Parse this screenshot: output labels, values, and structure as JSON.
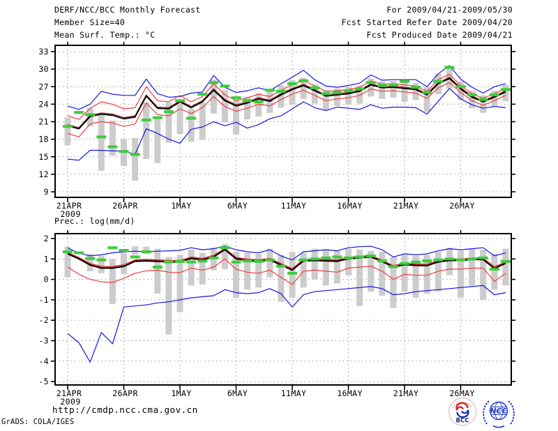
{
  "header": {
    "left_lines": [
      "DERF/NCC/BCC Monthly Forecast",
      "Member Size=40",
      "Mean Surf. Temp.: °C"
    ],
    "right_lines": [
      "For 2009/04/21-2009/05/30",
      "Fcst Started Refer Date 2009/04/20",
      "Fcst Produced Date 2009/04/21"
    ]
  },
  "footer": {
    "url": "http://cmdp.ncc.cma.gov.cn",
    "credit": "GrADS: COLA/IGES",
    "logos": [
      {
        "label": "BCC"
      },
      {
        "label": "NCC"
      }
    ]
  },
  "colors": {
    "extreme_line": "#1414e6",
    "sigma_line": "#f03c3c",
    "control_line": "#8c1c1c",
    "mean_line": "#000000",
    "obs_dash": "#3ccc3c",
    "spread_bar": "#cccccc"
  },
  "chart_data": [
    {
      "type": "line",
      "title": "Mean Surf. Temp.: °C",
      "x_start": "21APR2009",
      "x_tick_days": [
        0,
        5,
        10,
        15,
        20,
        25,
        30,
        35
      ],
      "x_tick_labels": [
        "21APR",
        "26APR",
        "1MAY",
        "6MAY",
        "11MAY",
        "16MAY",
        "21MAY",
        "26MAY"
      ],
      "year_label": "2009",
      "ylim": [
        9,
        33
      ],
      "yticks": [
        33,
        30,
        27,
        24,
        21,
        18,
        15,
        12,
        9
      ],
      "y_tick_labels": [
        "33",
        "30",
        "27",
        "24",
        "21",
        "18",
        "15",
        "12",
        "9"
      ],
      "grid": true,
      "series": [
        {
          "name": "ensemble-min",
          "color": "#1414e6",
          "width": 1.2,
          "values": [
            14.6,
            14.4,
            16.1,
            16.1,
            16.0,
            16.0,
            15.4,
            19.8,
            19.0,
            18.0,
            17.3,
            19.7,
            20.1,
            21.0,
            20.3,
            20.9,
            19.9,
            20.5,
            21.5,
            22.0,
            23.2,
            24.4,
            23.4,
            22.9,
            23.5,
            23.3,
            23.1,
            23.9,
            23.3,
            23.5,
            23.5,
            23.4,
            22.3,
            24.5,
            26.7,
            24.9,
            23.9,
            23.3,
            23.6,
            23.4
          ]
        },
        {
          "name": "ensemble-max",
          "color": "#1414e6",
          "width": 1.2,
          "values": [
            23.7,
            23.1,
            24.0,
            26.2,
            25.7,
            25.5,
            25.5,
            28.3,
            25.8,
            25.2,
            25.3,
            25.9,
            26.1,
            28.9,
            26.9,
            26.0,
            26.3,
            26.8,
            26.3,
            27.5,
            28.6,
            29.8,
            28.2,
            27.1,
            26.9,
            27.2,
            27.6,
            29.0,
            28.1,
            28.2,
            28.2,
            28.2,
            27.0,
            29.2,
            30.6,
            28.3,
            26.9,
            25.9,
            27.0,
            27.5
          ]
        },
        {
          "name": "mean-minus-sd",
          "color": "#f03c3c",
          "width": 1.2,
          "values": [
            19.0,
            18.4,
            20.6,
            21.0,
            20.8,
            20.2,
            20.6,
            24.2,
            22.2,
            22.0,
            23.2,
            22.4,
            23.4,
            25.3,
            23.6,
            22.8,
            23.3,
            24.0,
            23.7,
            24.8,
            25.7,
            26.4,
            25.5,
            24.6,
            24.9,
            25.1,
            25.5,
            26.6,
            26.2,
            26.3,
            26.1,
            25.9,
            25.0,
            26.8,
            27.7,
            26.0,
            24.6,
            23.8,
            24.6,
            25.5
          ]
        },
        {
          "name": "mean-plus-sd",
          "color": "#f03c3c",
          "width": 1.2,
          "values": [
            22.0,
            21.4,
            23.3,
            24.4,
            24.0,
            23.2,
            23.4,
            27.0,
            24.6,
            24.4,
            25.5,
            24.4,
            25.3,
            27.5,
            25.6,
            24.6,
            25.1,
            25.7,
            25.3,
            26.4,
            27.3,
            28.1,
            27.1,
            26.2,
            26.3,
            26.5,
            26.9,
            28.0,
            27.4,
            27.5,
            27.3,
            27.1,
            26.2,
            28.2,
            29.1,
            27.2,
            25.8,
            25.0,
            25.8,
            26.7
          ]
        },
        {
          "name": "control-run",
          "color": "#8c1c1c",
          "width": 1.2,
          "values": [
            20.5,
            20.0,
            22.1,
            22.5,
            22.3,
            21.7,
            22.0,
            25.6,
            23.5,
            23.4,
            24.6,
            23.6,
            24.6,
            26.6,
            24.8,
            23.9,
            24.4,
            25.1,
            24.7,
            25.8,
            26.7,
            27.4,
            26.5,
            25.6,
            25.8,
            26.0,
            26.4,
            27.5,
            27.0,
            27.1,
            26.9,
            26.7,
            25.8,
            27.7,
            28.6,
            26.8,
            25.4,
            24.6,
            25.4,
            26.3
          ]
        },
        {
          "name": "ensemble-mean",
          "color": "#000000",
          "width": 1.8,
          "values": [
            20.3,
            19.8,
            21.9,
            22.3,
            22.1,
            21.5,
            21.8,
            25.4,
            23.3,
            23.2,
            24.4,
            23.4,
            24.4,
            26.4,
            24.6,
            23.7,
            24.2,
            24.9,
            24.5,
            25.6,
            26.5,
            27.2,
            26.3,
            25.4,
            25.6,
            25.8,
            26.2,
            27.3,
            26.8,
            26.9,
            26.7,
            26.5,
            25.6,
            27.5,
            28.4,
            26.6,
            25.2,
            24.4,
            25.2,
            26.1
          ]
        }
      ],
      "observation": {
        "name": "observation",
        "color": "#3ccc3c",
        "values": [
          20.2,
          22.6,
          22.2,
          18.4,
          16.7,
          15.9,
          15.4,
          21.3,
          21.7,
          22.7,
          24.6,
          21.6,
          25.7,
          27.7,
          27.1,
          25.1,
          24.6,
          24.4,
          26.4,
          26.2,
          27.5,
          28.0,
          26.8,
          25.8,
          26.0,
          26.3,
          26.6,
          27.7,
          27.2,
          27.3,
          27.9,
          26.9,
          26.0,
          27.9,
          30.3,
          27.0,
          25.6,
          24.8,
          25.6,
          26.5
        ]
      },
      "spread_bars": {
        "color": "#cccccc",
        "ranges": [
          [
            17.0,
            21.7
          ],
          null,
          [
            20.2,
            23.3
          ],
          [
            12.6,
            22.2
          ],
          [
            15.2,
            21.2
          ],
          [
            13.4,
            18.0
          ],
          [
            10.9,
            18.2
          ],
          [
            14.6,
            24.3
          ],
          [
            13.9,
            21.8
          ],
          [
            17.4,
            24.3
          ],
          [
            18.9,
            24.1
          ],
          [
            17.6,
            23.2
          ],
          [
            17.9,
            24.3
          ],
          [
            22.4,
            28.2
          ],
          [
            20.9,
            26.4
          ],
          [
            18.8,
            24.7
          ],
          [
            21.4,
            25.2
          ],
          [
            21.9,
            25.9
          ],
          [
            22.5,
            26.3
          ],
          [
            23.4,
            27.2
          ],
          [
            23.9,
            28.1
          ],
          [
            24.9,
            28.5
          ],
          [
            24.1,
            27.4
          ],
          [
            22.9,
            26.4
          ],
          [
            23.7,
            26.7
          ],
          [
            23.9,
            26.9
          ],
          [
            24.1,
            27.2
          ],
          [
            25.3,
            28.4
          ],
          [
            24.9,
            27.9
          ],
          [
            25.1,
            28.0
          ],
          [
            24.4,
            27.9
          ],
          [
            24.7,
            27.6
          ],
          [
            22.7,
            26.9
          ],
          [
            25.7,
            29.2
          ],
          [
            26.7,
            30.3
          ],
          [
            24.7,
            27.9
          ],
          [
            23.3,
            26.3
          ],
          [
            22.5,
            25.5
          ],
          [
            23.5,
            26.3
          ],
          [
            24.5,
            27.3
          ]
        ]
      }
    },
    {
      "type": "line",
      "title": "Prec.: log(mm/d)",
      "x_start": "21APR2009",
      "x_tick_days": [
        0,
        5,
        10,
        15,
        20,
        25,
        30,
        35
      ],
      "x_tick_labels": [
        "21APR",
        "26APR",
        "1MAY",
        "6MAY",
        "11MAY",
        "16MAY",
        "21MAY",
        "26MAY"
      ],
      "year_label": "2009",
      "ylim": [
        -5,
        2
      ],
      "yticks": [
        2,
        1,
        0,
        -1,
        -2,
        -3,
        -4,
        -5
      ],
      "y_tick_labels": [
        "2",
        "1",
        "0",
        "-1",
        "-2",
        "-3",
        "-4",
        "-5"
      ],
      "grid": true,
      "series": [
        {
          "name": "ensemble-min",
          "color": "#1414e6",
          "width": 1.2,
          "values": [
            -2.65,
            -3.1,
            -4.05,
            -2.6,
            -3.15,
            -1.35,
            -1.3,
            -1.25,
            -1.15,
            -1.1,
            -1.0,
            -0.9,
            -0.85,
            -0.8,
            -0.5,
            -0.65,
            -0.7,
            -0.65,
            -0.45,
            -0.7,
            -1.35,
            -0.75,
            -0.6,
            -0.55,
            -0.5,
            -0.45,
            -0.4,
            -0.35,
            -0.45,
            -0.75,
            -0.7,
            -0.6,
            -0.55,
            -0.5,
            -0.45,
            -0.4,
            -0.35,
            -0.3,
            -0.75,
            -0.65
          ]
        },
        {
          "name": "ensemble-max",
          "color": "#1414e6",
          "width": 1.2,
          "values": [
            1.54,
            1.28,
            1.15,
            1.2,
            1.3,
            1.35,
            1.38,
            1.35,
            1.38,
            1.4,
            1.42,
            1.55,
            1.45,
            1.5,
            1.62,
            1.45,
            1.35,
            1.3,
            1.45,
            1.15,
            0.95,
            1.35,
            1.4,
            1.45,
            1.4,
            1.55,
            1.6,
            1.62,
            1.45,
            1.1,
            1.25,
            1.2,
            1.25,
            1.4,
            1.5,
            1.45,
            1.5,
            1.55,
            1.15,
            1.3
          ]
        },
        {
          "name": "mean-minus-sd",
          "color": "#f03c3c",
          "width": 1.2,
          "values": [
            0.6,
            0.25,
            0.0,
            -0.12,
            -0.15,
            0.05,
            0.3,
            0.42,
            0.45,
            0.35,
            0.33,
            0.55,
            0.45,
            0.6,
            1.0,
            0.5,
            0.35,
            0.3,
            0.45,
            0.1,
            -0.25,
            0.4,
            0.45,
            0.4,
            0.35,
            0.55,
            0.6,
            0.65,
            0.4,
            0.0,
            0.25,
            0.2,
            0.2,
            0.4,
            0.5,
            0.5,
            0.55,
            0.55,
            -0.1,
            0.3
          ]
        },
        {
          "name": "mean-plus-sd",
          "color": "#f03c3c",
          "width": 1.2,
          "values": [
            1.32,
            1.08,
            0.78,
            0.64,
            0.63,
            0.72,
            0.96,
            0.98,
            0.96,
            0.93,
            0.93,
            1.1,
            1.03,
            1.18,
            1.52,
            1.08,
            1.0,
            0.96,
            1.03,
            0.78,
            0.53,
            0.98,
            1.0,
            0.98,
            0.96,
            1.08,
            1.13,
            1.18,
            0.95,
            0.68,
            0.8,
            0.76,
            0.75,
            0.93,
            1.0,
            1.0,
            1.05,
            1.05,
            0.62,
            0.86
          ]
        },
        {
          "name": "control-run",
          "color": "#8c1c1c",
          "width": 1.2,
          "values": [
            1.29,
            1.04,
            0.74,
            0.59,
            0.59,
            0.67,
            0.92,
            0.94,
            0.92,
            0.89,
            0.89,
            1.06,
            0.99,
            1.14,
            1.49,
            1.04,
            0.96,
            0.92,
            0.99,
            0.74,
            0.49,
            0.94,
            0.96,
            0.94,
            0.92,
            1.04,
            1.09,
            1.14,
            0.91,
            0.64,
            0.76,
            0.72,
            0.71,
            0.89,
            0.96,
            0.96,
            1.01,
            1.01,
            0.57,
            0.82
          ]
        },
        {
          "name": "ensemble-mean",
          "color": "#000000",
          "width": 1.8,
          "values": [
            1.25,
            1.0,
            0.7,
            0.55,
            0.55,
            0.63,
            0.88,
            0.9,
            0.88,
            0.85,
            0.85,
            1.02,
            0.95,
            1.1,
            1.45,
            1.0,
            0.92,
            0.88,
            0.95,
            0.7,
            0.45,
            0.9,
            0.92,
            0.9,
            0.88,
            1.0,
            1.05,
            1.1,
            0.87,
            0.6,
            0.72,
            0.68,
            0.67,
            0.85,
            0.92,
            0.92,
            0.97,
            0.97,
            0.53,
            0.78
          ]
        }
      ],
      "observation": {
        "name": "observation",
        "color": "#3ccc3c",
        "values": [
          1.35,
          1.3,
          1.02,
          0.95,
          1.55,
          1.42,
          1.1,
          1.35,
          0.6,
          0.85,
          0.88,
          0.85,
          0.9,
          1.05,
          1.55,
          0.85,
          0.9,
          0.88,
          0.95,
          0.65,
          0.3,
          0.95,
          1.0,
          1.05,
          1.1,
          1.05,
          1.1,
          1.15,
          0.9,
          0.62,
          0.78,
          0.85,
          0.9,
          0.95,
          1.0,
          0.95,
          1.0,
          1.05,
          0.5,
          0.88
        ]
      },
      "spread_bars": {
        "color": "#cccccc",
        "ranges": [
          [
            0.1,
            1.6
          ],
          null,
          [
            0.4,
            1.25
          ],
          [
            0.3,
            1.15
          ],
          [
            -1.2,
            1.0
          ],
          [
            0.25,
            1.3
          ],
          [
            1.2,
            1.62
          ],
          [
            1.25,
            1.6
          ],
          [
            -0.7,
            1.5
          ],
          [
            -2.7,
            1.1
          ],
          [
            -1.6,
            1.2
          ],
          [
            -0.3,
            1.45
          ],
          [
            -0.25,
            1.3
          ],
          [
            0.45,
            1.55
          ],
          [
            0.5,
            1.72
          ],
          [
            -0.9,
            1.35
          ],
          [
            -0.5,
            1.3
          ],
          [
            -0.4,
            1.25
          ],
          [
            0.1,
            1.5
          ],
          [
            -1.1,
            1.2
          ],
          [
            -0.9,
            1.35
          ],
          [
            -0.4,
            1.3
          ],
          [
            0.0,
            1.5
          ],
          [
            -0.3,
            1.45
          ],
          [
            -0.2,
            1.4
          ],
          [
            0.2,
            1.5
          ],
          [
            -1.3,
            1.45
          ],
          [
            -0.6,
            1.4
          ],
          [
            -0.8,
            1.35
          ],
          [
            -1.4,
            1.1
          ],
          [
            -0.6,
            1.2
          ],
          [
            -0.9,
            1.15
          ],
          [
            -0.7,
            1.2
          ],
          [
            -0.6,
            1.35
          ],
          [
            0.2,
            1.55
          ],
          [
            -0.9,
            1.4
          ],
          [
            -0.3,
            1.5
          ],
          [
            -1.0,
            1.45
          ],
          [
            -0.5,
            1.25
          ],
          [
            -0.3,
            1.5
          ]
        ]
      }
    }
  ]
}
